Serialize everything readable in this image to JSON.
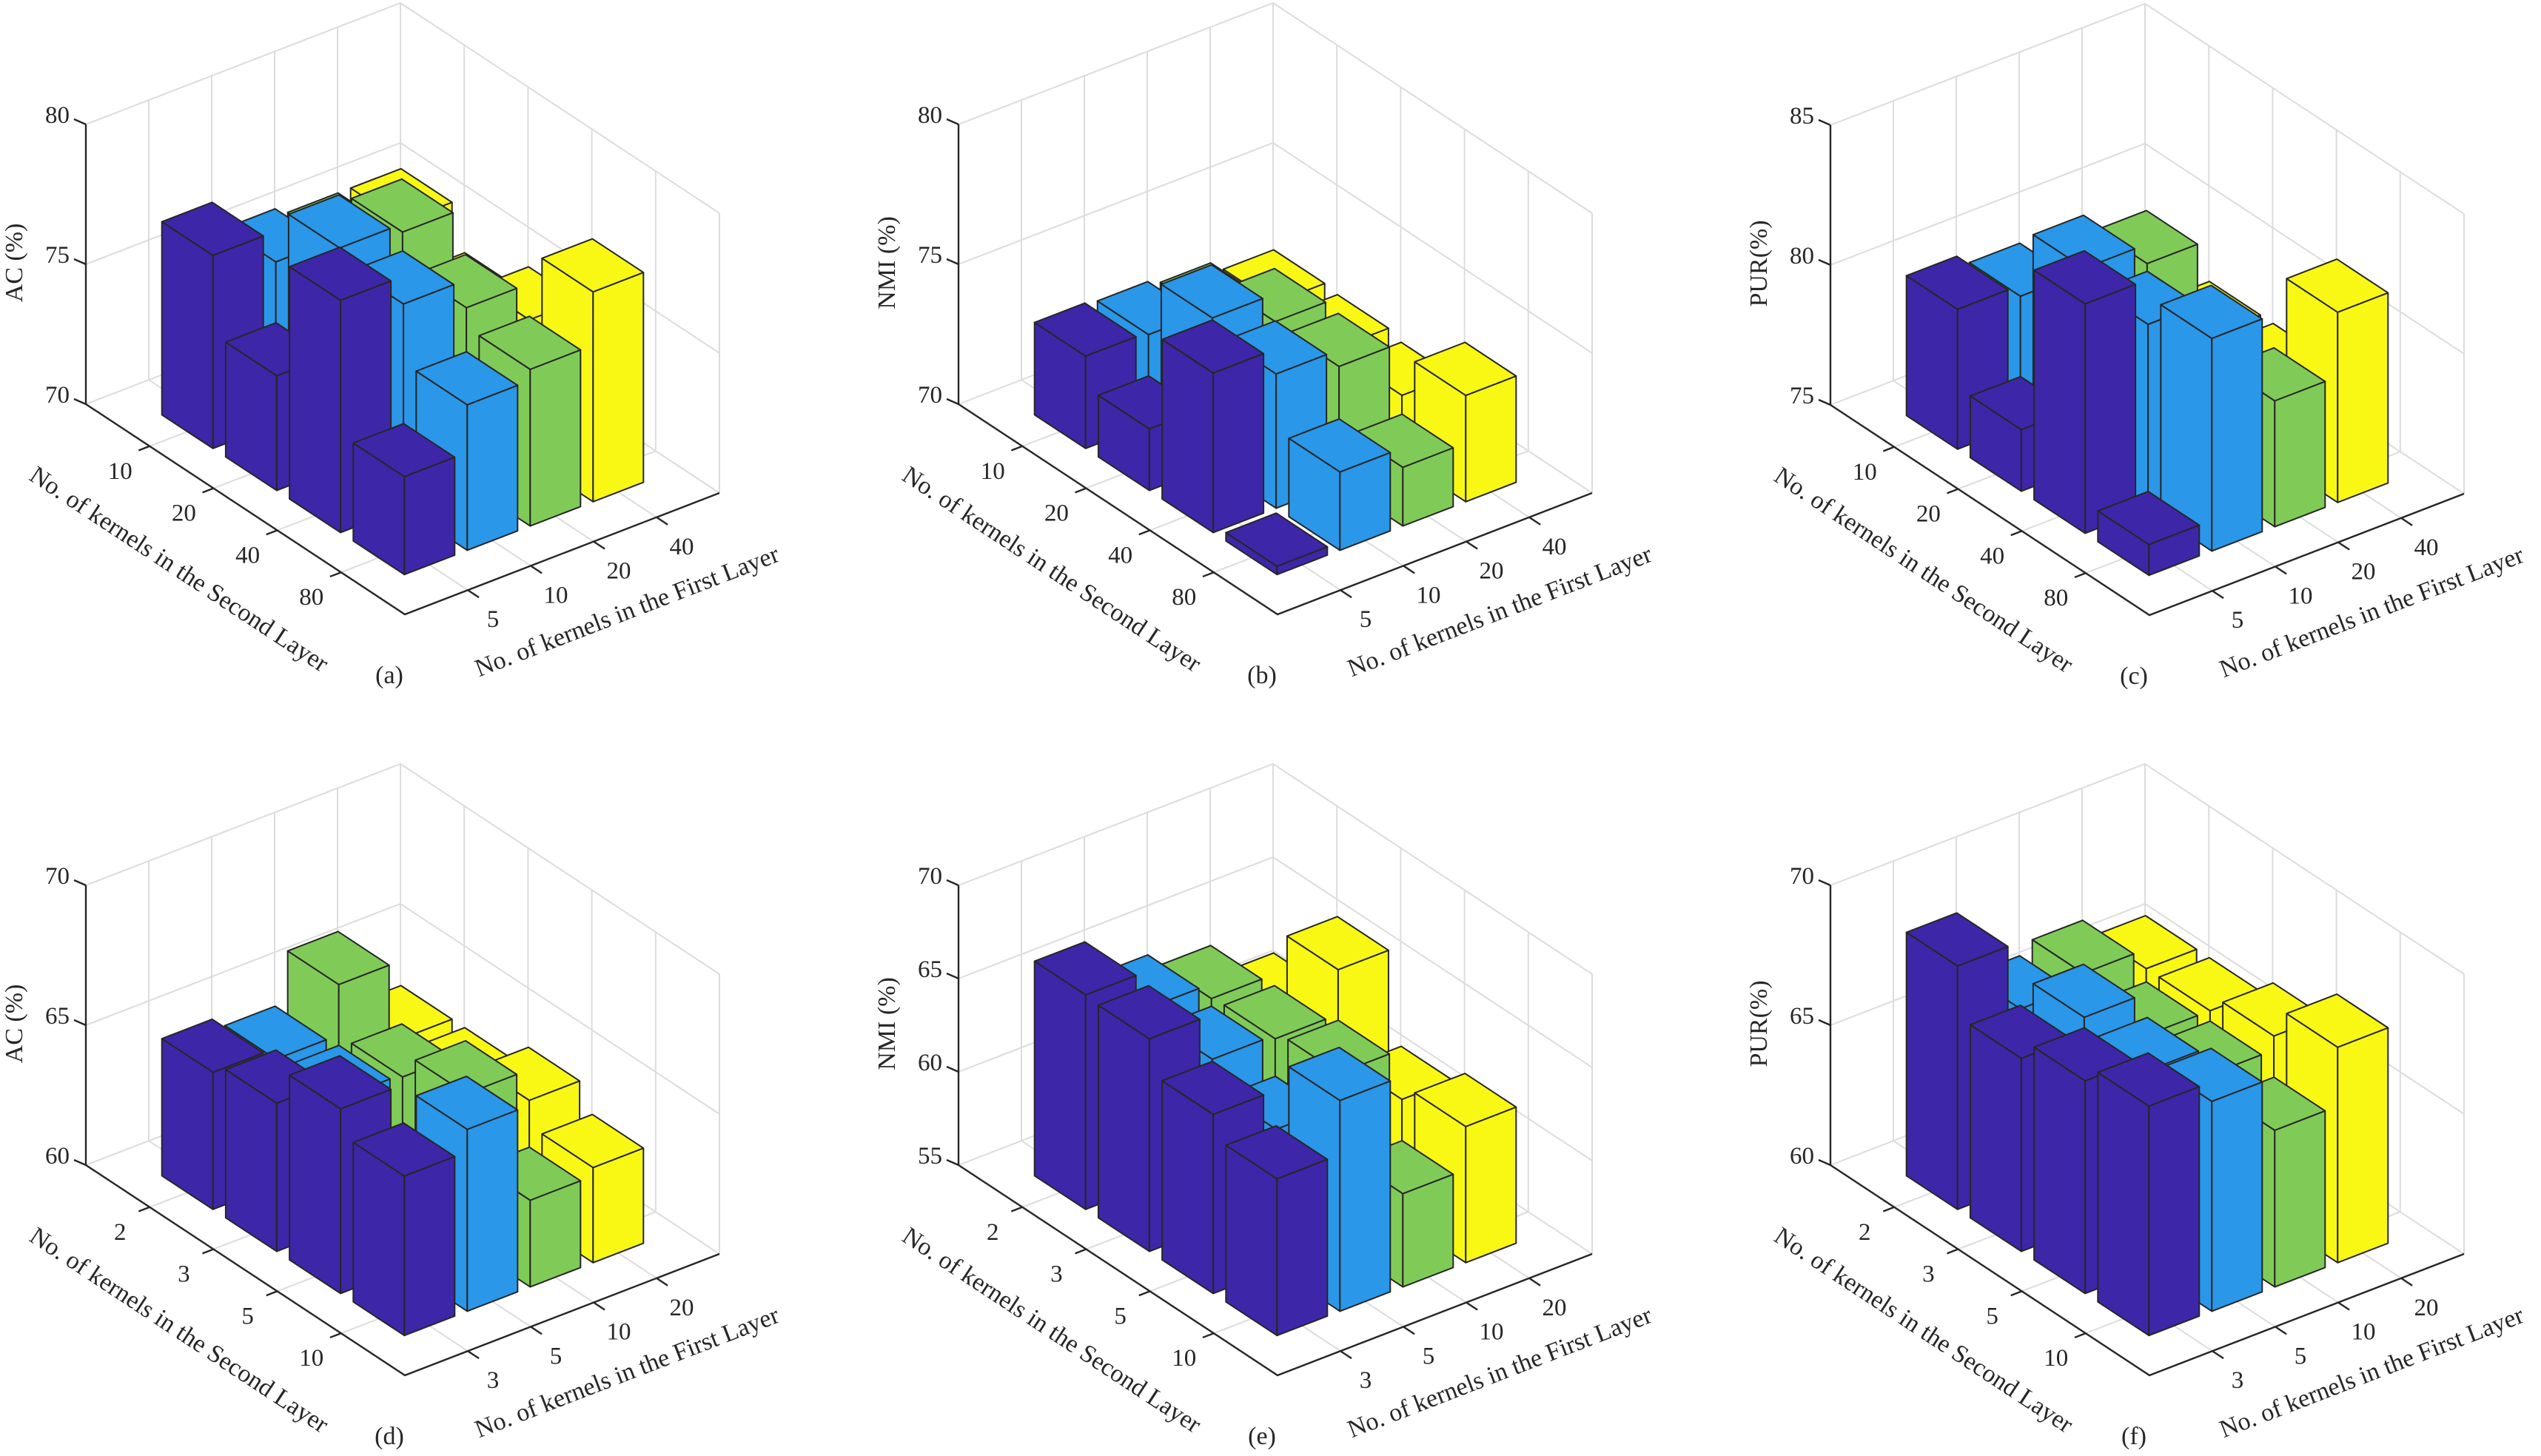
{
  "figure": {
    "series_colors": {
      "c0": "#3e26a8",
      "c1": "#2a97e8",
      "c2": "#80cb58",
      "c3": "#f9f815"
    },
    "edge_color": "#262626",
    "grid_color": "#dcdcdc"
  },
  "chart_data": [
    {
      "id": "a",
      "panel_letter": "(a)",
      "type": "bar3",
      "zlabel": "AC (%)",
      "xlabel": "No. of kernels in the Second Layer",
      "ylabel": "No. of kernels in the First Layer",
      "rows": [
        "10",
        "20",
        "40",
        "80"
      ],
      "cols": [
        "5",
        "10",
        "20",
        "40"
      ],
      "zlim": [
        70,
        80
      ],
      "zticks": [
        "70",
        "75",
        "80"
      ],
      "grid": true,
      "values": [
        [
          76.9,
          75.8,
          75.5,
          75.5
        ],
        [
          74.1,
          77.8,
          77.5,
          74.0
        ],
        [
          78.3,
          77.3,
          76.3,
          75.0
        ],
        [
          73.5,
          75.2,
          75.6,
          77.5
        ]
      ]
    },
    {
      "id": "b",
      "panel_letter": "(b)",
      "type": "bar3",
      "zlabel": "NMI (%)",
      "xlabel": "No. of kernels in the Second Layer",
      "ylabel": "No. of kernels in the First Layer",
      "rows": [
        "10",
        "20",
        "40",
        "80"
      ],
      "cols": [
        "5",
        "10",
        "20",
        "40"
      ],
      "zlim": [
        70,
        80
      ],
      "zticks": [
        "70",
        "75",
        "80"
      ],
      "grid": true,
      "values": [
        [
          73.3,
          73.2,
          73.0,
          72.6
        ],
        [
          72.2,
          75.3,
          74.3,
          72.5
        ],
        [
          75.7,
          74.8,
          74.2,
          72.3
        ],
        [
          70.3,
          72.8,
          72.1,
          73.8
        ]
      ]
    },
    {
      "id": "c",
      "panel_letter": "(c)",
      "type": "bar3",
      "zlabel": "PUR(%)",
      "xlabel": "No. of kernels in the Second Layer",
      "ylabel": "No. of kernels in the First Layer",
      "rows": [
        "10",
        "20",
        "40",
        "80"
      ],
      "cols": [
        "5",
        "10",
        "20",
        "40"
      ],
      "zlim": [
        75,
        85
      ],
      "zticks": [
        "75",
        "80",
        "85"
      ],
      "grid": true,
      "values": [
        [
          80.0,
          79.6,
          79.0,
          78.0
        ],
        [
          77.2,
          82.1,
          81.4,
          78.0
        ],
        [
          83.2,
          81.6,
          79.0,
          78.0
        ],
        [
          76.1,
          82.6,
          79.5,
          81.8
        ]
      ]
    },
    {
      "id": "d",
      "panel_letter": "(d)",
      "type": "bar3",
      "zlabel": "AC (%)",
      "xlabel": "No. of kernels in the Second Layer",
      "ylabel": "No. of kernels in the First Layer",
      "rows": [
        "2",
        "3",
        "5",
        "10"
      ],
      "cols": [
        "3",
        "5",
        "10",
        "20"
      ],
      "zlim": [
        60,
        70
      ],
      "zticks": [
        "60",
        "65",
        "70"
      ],
      "grid": true,
      "values": [
        [
          64.9,
          64.5,
          66.3,
          63.5
        ],
        [
          65.3,
          64.6,
          64.5,
          63.5
        ],
        [
          66.6,
          63.0,
          65.4,
          64.3
        ],
        [
          65.7,
          66.5,
          63.1,
          63.4
        ]
      ]
    },
    {
      "id": "e",
      "panel_letter": "(e)",
      "type": "bar3",
      "zlabel": "NMI (%)",
      "xlabel": "No. of kernels in the Second Layer",
      "ylabel": "No. of kernels in the First Layer",
      "rows": [
        "2",
        "3",
        "5",
        "10"
      ],
      "cols": [
        "3",
        "5",
        "10",
        "20"
      ],
      "zlim": [
        55,
        70
      ],
      "zticks": [
        "55",
        "60",
        "65",
        "70"
      ],
      "grid": true,
      "values": [
        [
          66.5,
          64.5,
          63.7,
          62.0
        ],
        [
          66.4,
          64.0,
          63.8,
          66.2
        ],
        [
          64.6,
          62.5,
          64.2,
          61.5
        ],
        [
          63.4,
          66.3,
          60.0,
          62.3
        ]
      ]
    },
    {
      "id": "f",
      "panel_letter": "(f)",
      "type": "bar3",
      "zlabel": "PUR(%)",
      "xlabel": "No. of kernels in the Second Layer",
      "ylabel": "No. of kernels in the First Layer",
      "rows": [
        "2",
        "3",
        "5",
        "10"
      ],
      "cols": [
        "3",
        "5",
        "10",
        "20"
      ],
      "zlim": [
        60,
        70
      ],
      "zticks": [
        "60",
        "65",
        "70"
      ],
      "grid": true,
      "values": [
        [
          68.7,
          66.3,
          66.7,
          66.0
        ],
        [
          66.9,
          67.5,
          66.0,
          66.0
        ],
        [
          67.6,
          67.1,
          66.1,
          66.6
        ],
        [
          68.2,
          67.5,
          65.6,
          67.7
        ]
      ]
    }
  ]
}
